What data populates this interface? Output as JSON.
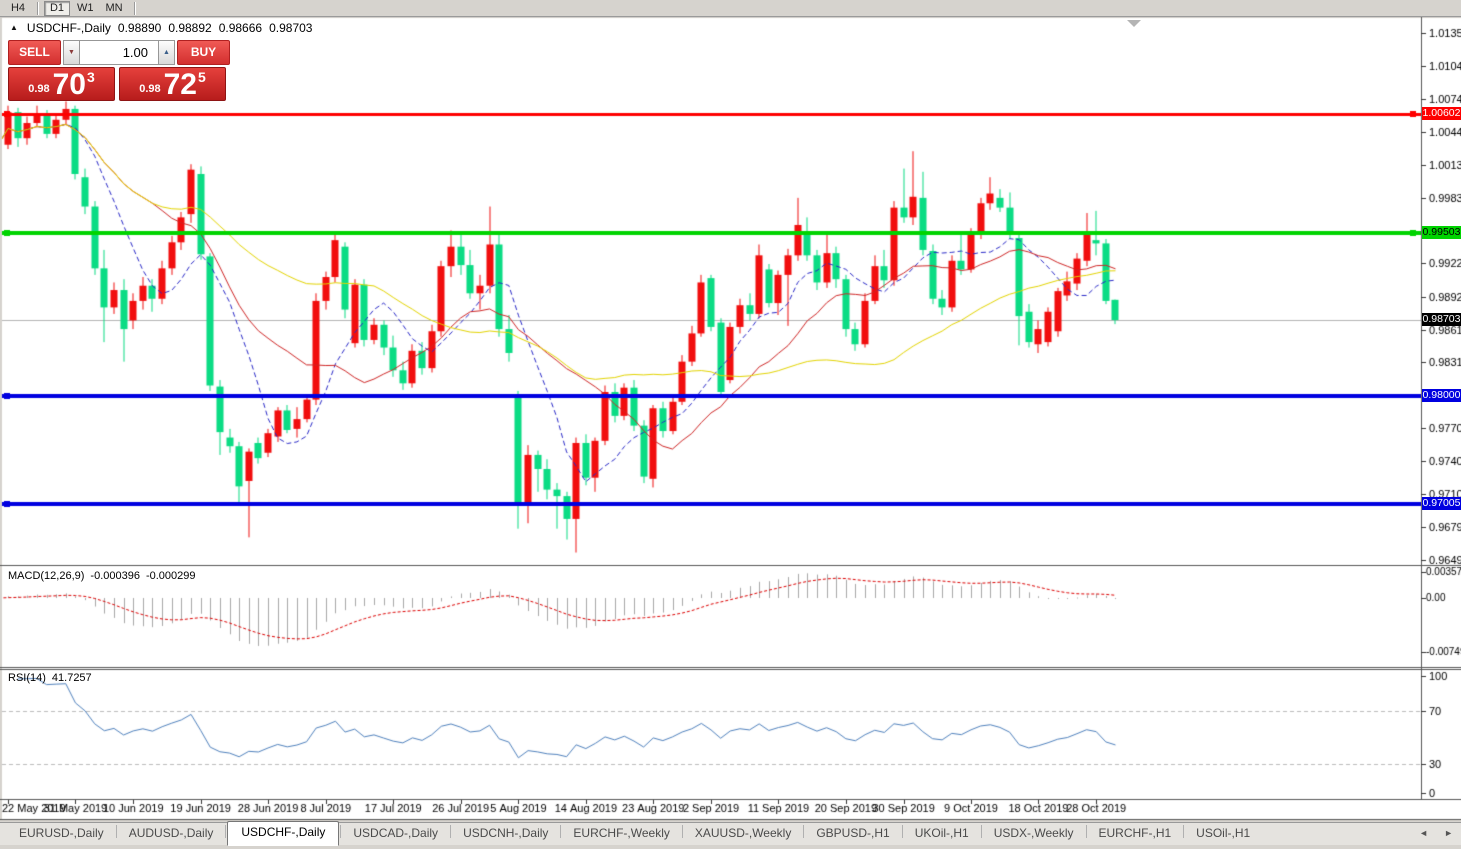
{
  "toolbar": {
    "items": [
      {
        "label": "H4",
        "active": false
      },
      {
        "label": "D1",
        "active": true
      },
      {
        "label": "W1",
        "active": false
      },
      {
        "label": "MN",
        "active": false
      }
    ]
  },
  "chart_title": {
    "collapse_icon": "▲",
    "symbol": "USDCHF-,Daily",
    "open": "0.98890",
    "high": "0.98892",
    "low": "0.98666",
    "close": "0.98703"
  },
  "trade_panel": {
    "sell_label": "SELL",
    "buy_label": "BUY",
    "volume": "1.00",
    "vol_down_icon": "▼",
    "vol_up_icon": "▲",
    "sell_price": {
      "small": "0.98",
      "big": "70",
      "sup": "3"
    },
    "buy_price": {
      "small": "0.98",
      "big": "72",
      "sup": "5"
    }
  },
  "indicators": {
    "macd_name": "MACD(12,26,9)",
    "macd_value1": "-0.000396",
    "macd_value2": "-0.000299",
    "rsi_name": "RSI(14)",
    "rsi_value": "41.7257"
  },
  "chart_data": {
    "type": "candlestick",
    "symbol": "USDCHF",
    "timeframe": "Daily",
    "ohlc": [
      [
        1.0072,
        1.0075,
        1.0028,
        1.0032
      ],
      [
        1.0032,
        1.0068,
        1.0028,
        1.0062
      ],
      [
        1.0062,
        1.0066,
        1.003,
        1.0038
      ],
      [
        1.0038,
        1.0058,
        1.0032,
        1.0052
      ],
      [
        1.0052,
        1.0068,
        1.0048,
        1.006
      ],
      [
        1.006,
        1.0064,
        1.0038,
        1.0042
      ],
      [
        1.0042,
        1.006,
        1.0038,
        1.0055
      ],
      [
        1.0055,
        1.0072,
        1.005,
        1.0065
      ],
      [
        1.0065,
        1.0068,
        1.0,
        1.0005
      ],
      [
        1.0002,
        1.001,
        0.9968,
        0.9975
      ],
      [
        0.9975,
        0.998,
        0.9912,
        0.9918
      ],
      [
        0.9918,
        0.9935,
        0.985,
        0.9882
      ],
      [
        0.9882,
        0.9905,
        0.9876,
        0.9898
      ],
      [
        0.9898,
        0.9908,
        0.9832,
        0.9862
      ],
      [
        0.987,
        0.9895,
        0.9862,
        0.9888
      ],
      [
        0.9888,
        0.991,
        0.988,
        0.9902
      ],
      [
        0.9902,
        0.9908,
        0.9878,
        0.989
      ],
      [
        0.989,
        0.9925,
        0.9885,
        0.9918
      ],
      [
        0.9918,
        0.9948,
        0.9912,
        0.9942
      ],
      [
        0.9942,
        0.997,
        0.9935,
        0.9965
      ],
      [
        0.9968,
        1.0014,
        0.996,
        1.0009
      ],
      [
        1.0005,
        1.0012,
        0.9926,
        0.9931
      ],
      [
        0.9929,
        0.9932,
        0.9805,
        0.981
      ],
      [
        0.9809,
        0.9815,
        0.9746,
        0.9767
      ],
      [
        0.9762,
        0.977,
        0.9748,
        0.9754
      ],
      [
        0.9754,
        0.9758,
        0.9701,
        0.9717
      ],
      [
        0.9722,
        0.9752,
        0.967,
        0.9749
      ],
      [
        0.9757,
        0.9762,
        0.9738,
        0.9743
      ],
      [
        0.9748,
        0.977,
        0.9744,
        0.9766
      ],
      [
        0.9763,
        0.979,
        0.9758,
        0.9787
      ],
      [
        0.9787,
        0.9792,
        0.9766,
        0.9769
      ],
      [
        0.977,
        0.979,
        0.9762,
        0.9779
      ],
      [
        0.9779,
        0.98,
        0.9776,
        0.9797
      ],
      [
        0.9797,
        0.9895,
        0.9792,
        0.9888
      ],
      [
        0.9888,
        0.9915,
        0.988,
        0.991
      ],
      [
        0.991,
        0.9952,
        0.9905,
        0.9944
      ],
      [
        0.9938,
        0.9942,
        0.9872,
        0.988
      ],
      [
        0.9849,
        0.9908,
        0.9845,
        0.9903
      ],
      [
        0.9903,
        0.9908,
        0.9846,
        0.9852
      ],
      [
        0.9852,
        0.9872,
        0.9848,
        0.9866
      ],
      [
        0.9866,
        0.987,
        0.9838,
        0.9845
      ],
      [
        0.9845,
        0.9856,
        0.9818,
        0.9824
      ],
      [
        0.9824,
        0.9832,
        0.9806,
        0.9812
      ],
      [
        0.9812,
        0.9848,
        0.9808,
        0.9842
      ],
      [
        0.9842,
        0.985,
        0.982,
        0.9826
      ],
      [
        0.9826,
        0.9866,
        0.9822,
        0.986
      ],
      [
        0.986,
        0.9925,
        0.9855,
        0.992
      ],
      [
        0.992,
        0.9953,
        0.991,
        0.9938
      ],
      [
        0.9938,
        0.9952,
        0.9912,
        0.9921
      ],
      [
        0.9921,
        0.9935,
        0.989,
        0.9895
      ],
      [
        0.9895,
        0.9912,
        0.988,
        0.9902
      ],
      [
        0.9902,
        0.9975,
        0.9895,
        0.994
      ],
      [
        0.994,
        0.9952,
        0.9855,
        0.9862
      ],
      [
        0.9862,
        0.9875,
        0.9832,
        0.984
      ],
      [
        0.98,
        0.9805,
        0.9678,
        0.97
      ],
      [
        0.97,
        0.9755,
        0.9683,
        0.9746
      ],
      [
        0.9746,
        0.975,
        0.9712,
        0.9733
      ],
      [
        0.9733,
        0.9742,
        0.9705,
        0.9714
      ],
      [
        0.9714,
        0.972,
        0.9678,
        0.9708
      ],
      [
        0.9708,
        0.9712,
        0.9668,
        0.9687
      ],
      [
        0.9687,
        0.9762,
        0.9656,
        0.9757
      ],
      [
        0.9757,
        0.9765,
        0.9718,
        0.9725
      ],
      [
        0.9725,
        0.9762,
        0.9712,
        0.9759
      ],
      [
        0.9759,
        0.981,
        0.9755,
        0.9804
      ],
      [
        0.9804,
        0.9812,
        0.9776,
        0.9782
      ],
      [
        0.9782,
        0.9812,
        0.9778,
        0.9808
      ],
      [
        0.9808,
        0.9815,
        0.9768,
        0.9773
      ],
      [
        0.9773,
        0.9778,
        0.972,
        0.9726
      ],
      [
        0.9724,
        0.9792,
        0.9716,
        0.9789
      ],
      [
        0.9789,
        0.9795,
        0.9762,
        0.9768
      ],
      [
        0.9768,
        0.98,
        0.9765,
        0.9795
      ],
      [
        0.9795,
        0.9838,
        0.9792,
        0.9832
      ],
      [
        0.9832,
        0.9865,
        0.9828,
        0.9858
      ],
      [
        0.9858,
        0.9912,
        0.9855,
        0.9905
      ],
      [
        0.9909,
        0.9912,
        0.986,
        0.9864
      ],
      [
        0.9868,
        0.9872,
        0.98,
        0.9804
      ],
      [
        0.9815,
        0.9868,
        0.9812,
        0.9864
      ],
      [
        0.9864,
        0.989,
        0.9858,
        0.9884
      ],
      [
        0.9884,
        0.9895,
        0.987,
        0.9876
      ],
      [
        0.9876,
        0.994,
        0.9872,
        0.993
      ],
      [
        0.9917,
        0.9922,
        0.9882,
        0.9886
      ],
      [
        0.9886,
        0.9916,
        0.9875,
        0.9912
      ],
      [
        0.9912,
        0.9936,
        0.9865,
        0.993
      ],
      [
        0.993,
        0.9983,
        0.9925,
        0.9958
      ],
      [
        0.995,
        0.9965,
        0.9925,
        0.993
      ],
      [
        0.993,
        0.9935,
        0.9898,
        0.9905
      ],
      [
        0.9905,
        0.995,
        0.99,
        0.9932
      ],
      [
        0.9932,
        0.9938,
        0.99,
        0.9908
      ],
      [
        0.9908,
        0.9912,
        0.9855,
        0.9862
      ],
      [
        0.9862,
        0.9868,
        0.9842,
        0.9848
      ],
      [
        0.9848,
        0.9895,
        0.9845,
        0.9888
      ],
      [
        0.9888,
        0.993,
        0.9885,
        0.992
      ],
      [
        0.992,
        0.9935,
        0.99,
        0.9907
      ],
      [
        0.9907,
        0.998,
        0.9902,
        0.9974
      ],
      [
        0.9974,
        1.001,
        0.996,
        0.9965
      ],
      [
        0.9965,
        1.0026,
        0.9958,
        0.9984
      ],
      [
        0.9983,
        1.0007,
        0.993,
        0.9935
      ],
      [
        0.9934,
        0.994,
        0.9885,
        0.989
      ],
      [
        0.989,
        0.9898,
        0.9875,
        0.9882
      ],
      [
        0.9882,
        0.993,
        0.9878,
        0.9925
      ],
      [
        0.9925,
        0.995,
        0.9912,
        0.9917
      ],
      [
        0.9917,
        0.9955,
        0.9914,
        0.995
      ],
      [
        0.995,
        0.9983,
        0.9945,
        0.9978
      ],
      [
        0.9978,
        1.0002,
        0.9972,
        0.9987
      ],
      [
        0.9983,
        0.9991,
        0.997,
        0.9974
      ],
      [
        0.9974,
        0.9988,
        0.9945,
        0.995
      ],
      [
        0.9946,
        0.995,
        0.9847,
        0.9874
      ],
      [
        0.9878,
        0.9885,
        0.9845,
        0.985
      ],
      [
        0.9848,
        0.987,
        0.984,
        0.9862
      ],
      [
        0.985,
        0.9882,
        0.9846,
        0.9878
      ],
      [
        0.986,
        0.99,
        0.9855,
        0.9897
      ],
      [
        0.9893,
        0.9915,
        0.9888,
        0.9906
      ],
      [
        0.9904,
        0.9932,
        0.9898,
        0.9927
      ],
      [
        0.9925,
        0.9969,
        0.992,
        0.995
      ],
      [
        0.9944,
        0.9971,
        0.993,
        0.9941
      ],
      [
        0.9941,
        0.9945,
        0.9885,
        0.9888
      ],
      [
        0.9889,
        0.98892,
        0.98666,
        0.98703
      ]
    ],
    "date_labels": [
      {
        "i": 1,
        "label": "22 May 2019"
      },
      {
        "i": 8,
        "label": "31 May 2019"
      },
      {
        "i": 14,
        "label": "10 Jun 2019"
      },
      {
        "i": 21,
        "label": "19 Jun 2019"
      },
      {
        "i": 28,
        "label": "28 Jun 2019"
      },
      {
        "i": 34,
        "label": "8 Jul 2019"
      },
      {
        "i": 41,
        "label": "17 Jul 2019"
      },
      {
        "i": 48,
        "label": "26 Jul 2019"
      },
      {
        "i": 54,
        "label": "5 Aug 2019"
      },
      {
        "i": 61,
        "label": "14 Aug 2019"
      },
      {
        "i": 68,
        "label": "23 Aug 2019"
      },
      {
        "i": 74,
        "label": "2 Sep 2019"
      },
      {
        "i": 81,
        "label": "11 Sep 2019"
      },
      {
        "i": 88,
        "label": "20 Sep 2019"
      },
      {
        "i": 94,
        "label": "30 Sep 2019"
      },
      {
        "i": 101,
        "label": "9 Oct 2019"
      },
      {
        "i": 108,
        "label": "18 Oct 2019"
      },
      {
        "i": 114,
        "label": "28 Oct 2019"
      }
    ],
    "price_axis_ticks": [
      {
        "label": "1.01350",
        "value": 1.0135
      },
      {
        "label": "1.01045",
        "value": 1.01045
      },
      {
        "label": "1.00740",
        "value": 1.0074
      },
      {
        "label": "1.00440",
        "value": 1.0044
      },
      {
        "label": "1.00135",
        "value": 1.00135
      },
      {
        "label": "0.99830",
        "value": 0.9983
      },
      {
        "label": "0.99225",
        "value": 0.99225
      },
      {
        "label": "0.98920",
        "value": 0.9892
      },
      {
        "label": "0.98615",
        "value": 0.98615
      },
      {
        "label": "0.98315",
        "value": 0.98315
      },
      {
        "label": "0.97705",
        "value": 0.97705
      },
      {
        "label": "0.97400",
        "value": 0.974
      },
      {
        "label": "0.97100",
        "value": 0.971
      },
      {
        "label": "0.96795",
        "value": 0.96795
      },
      {
        "label": "0.96490",
        "value": 0.9649
      }
    ],
    "macd_axis_ticks": [
      {
        "label": "0.003574",
        "value": 0.003574
      },
      {
        "label": "0.00",
        "value": 0
      },
      {
        "label": "-0.00749",
        "value": -0.00749
      }
    ],
    "rsi_axis_ticks": [
      {
        "label": "100",
        "value": 100
      },
      {
        "label": "70",
        "value": 70
      },
      {
        "label": "30",
        "value": 30
      },
      {
        "label": "0",
        "value": 0
      }
    ],
    "rsi_levels": [
      70,
      30
    ],
    "moving_averages": [
      {
        "period": 8,
        "color": "#2929c8",
        "style": "dashed"
      },
      {
        "period": 17,
        "color": "#cf2525",
        "style": "solid"
      },
      {
        "period": 40,
        "color": "#e3d400",
        "style": "solid"
      }
    ],
    "hlines": [
      {
        "value": 1.00602,
        "label": "1.00602",
        "color": "#fe0000",
        "width": 3,
        "text": "#ffffff",
        "right_handle": true
      },
      {
        "value": 0.99503,
        "label": "0.99503",
        "color": "#00d400",
        "width": 4,
        "text": "#000000",
        "right_handle": true
      },
      {
        "value": 0.98,
        "label": "0.98000",
        "color": "#0000e0",
        "width": 4,
        "text": "#ffffff",
        "right_handle": false
      },
      {
        "value": 0.97005,
        "label": "0.97005",
        "color": "#0000e0",
        "width": 4,
        "text": "#ffffff",
        "right_handle": false
      }
    ],
    "price_line": {
      "value": 0.98703,
      "label": "0.98703",
      "color": "#b4b4b4",
      "tag_bg": "#000000",
      "text": "#ffffff"
    },
    "colors": {
      "up": "#f10e0e",
      "down": "#0bdc84",
      "macd_hist": "#a8a8a8",
      "macd_signal": "#dd0000",
      "rsi": "#4f81bd",
      "bg": "#ffffff"
    }
  },
  "tabs": {
    "scroll_left": "◄",
    "scroll_right": "►",
    "items": [
      {
        "label": "EURUSD-,Daily",
        "active": false
      },
      {
        "label": "AUDUSD-,Daily",
        "active": false
      },
      {
        "label": "USDCHF-,Daily",
        "active": true
      },
      {
        "label": "USDCAD-,Daily",
        "active": false
      },
      {
        "label": "USDCNH-,Daily",
        "active": false
      },
      {
        "label": "EURCHF-,Weekly",
        "active": false
      },
      {
        "label": "XAUUSD-,Weekly",
        "active": false
      },
      {
        "label": "GBPUSD-,H1",
        "active": false
      },
      {
        "label": "UKOil-,H1",
        "active": false
      },
      {
        "label": "USDX-,Weekly",
        "active": false
      },
      {
        "label": "EURCHF-,H1",
        "active": false
      },
      {
        "label": "USOil-,H1",
        "active": false
      }
    ]
  }
}
